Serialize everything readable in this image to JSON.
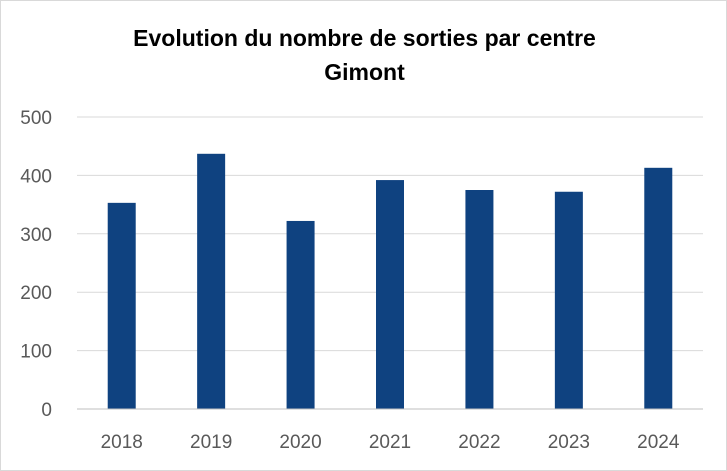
{
  "chart_data": {
    "type": "bar",
    "title_lines": [
      "Evolution du nombre de sorties par centre",
      "Gimont"
    ],
    "categories": [
      "2018",
      "2019",
      "2020",
      "2021",
      "2022",
      "2023",
      "2024"
    ],
    "values": [
      353,
      437,
      322,
      392,
      375,
      372,
      413
    ],
    "ylim": [
      0,
      500
    ],
    "yticks": [
      "0",
      "100",
      "200",
      "300",
      "400",
      "500"
    ],
    "xlabel": "",
    "ylabel": "",
    "grid": true,
    "legend": "none",
    "colors": {
      "bar": "#0f4280",
      "grid": "#d9d9d9",
      "axis": "#bfbfbf"
    }
  }
}
